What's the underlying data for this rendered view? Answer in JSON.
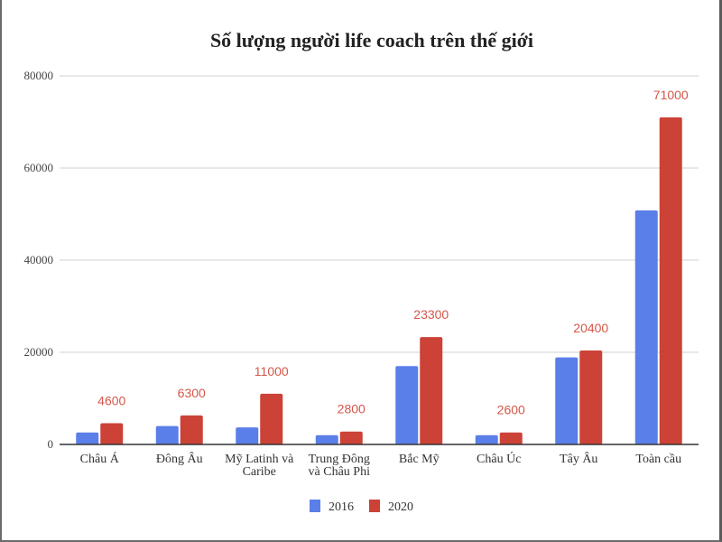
{
  "chart_data": {
    "type": "bar",
    "title": "Số lượng người life coach trên thế giới",
    "xlabel": "",
    "ylabel": "",
    "ylim": [
      0,
      80000
    ],
    "yticks": [
      "0",
      "20000",
      "40000",
      "60000",
      "80000"
    ],
    "grid": true,
    "legend_position": "bottom",
    "categories": [
      [
        "Châu Á"
      ],
      [
        "Đông Âu"
      ],
      [
        "Mỹ Latinh và",
        "Caribe"
      ],
      [
        "Trung Đông",
        "và Châu Phi"
      ],
      [
        "Bắc Mỹ"
      ],
      [
        "Châu Úc"
      ],
      [
        "Tây Âu"
      ],
      [
        "Toàn cầu"
      ]
    ],
    "series": [
      {
        "name": "2016",
        "color": "#5b7fe8",
        "values": [
          2600,
          4000,
          3700,
          2000,
          17000,
          2000,
          18900,
          50800
        ],
        "show_labels": false
      },
      {
        "name": "2020",
        "color": "#cc4236",
        "values": [
          4600,
          6300,
          11000,
          2800,
          23300,
          2600,
          20400,
          71000
        ],
        "labels": [
          "4600",
          "6300",
          "11000",
          "2800",
          "23300",
          "2600",
          "20400",
          "71000"
        ],
        "show_labels": true
      }
    ]
  }
}
